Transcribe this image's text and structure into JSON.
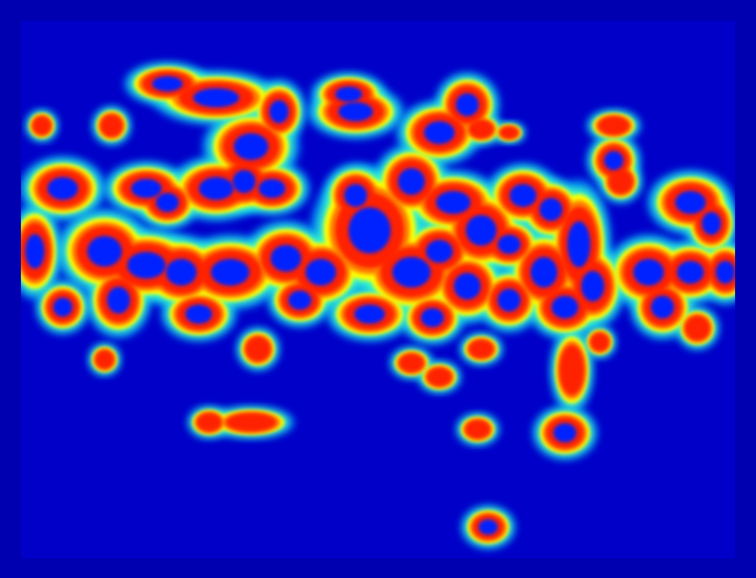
{
  "image": {
    "kind": "jet-colormap-heatmap",
    "colormap": [
      "#0000a8",
      "#0010ff",
      "#00a0ff",
      "#40ffc0",
      "#ffff00",
      "#ff8000",
      "#ff2000",
      "#0020ff"
    ],
    "border_color": "#0000b0",
    "background_color": "#0000c8"
  }
}
